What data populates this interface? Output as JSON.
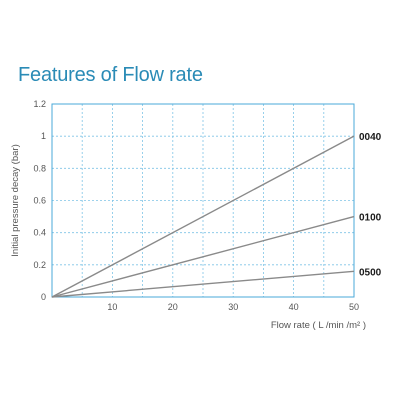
{
  "title": "Features of Flow rate",
  "chart_data": {
    "type": "line",
    "xlabel": "Flow rate ( L /min /m² )",
    "ylabel": "Initial pressure decay (bar)",
    "xlim": [
      0,
      50
    ],
    "ylim": [
      0,
      1.2
    ],
    "x_ticks": [
      "10",
      "20",
      "30",
      "40",
      "50"
    ],
    "y_ticks": [
      "0",
      "0.2",
      "0.4",
      "0.6",
      "0.8",
      "1",
      "1.2"
    ],
    "x_tick_values": [
      10,
      20,
      30,
      40,
      50
    ],
    "y_tick_values": [
      0,
      0.2,
      0.4,
      0.6,
      0.8,
      1,
      1.2
    ],
    "x_grid_values": [
      5,
      10,
      15,
      20,
      25,
      30,
      35,
      40,
      45
    ],
    "y_grid_values": [
      0.2,
      0.4,
      0.6,
      0.8,
      1.0
    ],
    "grid": true,
    "series": [
      {
        "name": "0040",
        "x": [
          0,
          50
        ],
        "y": [
          0,
          1.0
        ]
      },
      {
        "name": "0100",
        "x": [
          0,
          50
        ],
        "y": [
          0,
          0.5
        ]
      },
      {
        "name": "0500",
        "x": [
          0,
          50
        ],
        "y": [
          0,
          0.16
        ]
      }
    ],
    "colors": {
      "frame": "#4aa8d8",
      "grid": "#7fc4e6",
      "line": "#8a8a8a"
    }
  }
}
